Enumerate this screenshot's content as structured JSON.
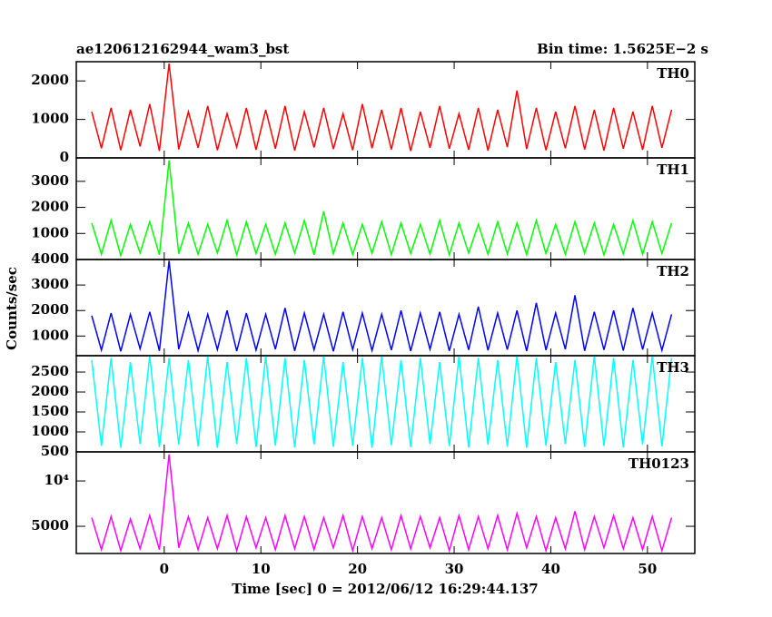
{
  "chart_data": {
    "type": "line",
    "title": "ae120612162944_wam3_bst",
    "subtitle": "Bin time: 1.5625E−2 s",
    "ylabel": "Counts/sec",
    "xlabel": "Time [sec] 0 = 2012/06/12 16:29:44.137",
    "xlim": [
      -9.1,
      54.9
    ],
    "xticks": [
      0,
      10,
      20,
      30,
      40,
      50
    ],
    "x": [
      -7.5,
      -6.5,
      -5.5,
      -4.5,
      -3.5,
      -2.5,
      -1.5,
      -0.5,
      0.5,
      1.5,
      2.5,
      3.5,
      4.5,
      5.5,
      6.5,
      7.5,
      8.5,
      9.5,
      10.5,
      11.5,
      12.5,
      13.5,
      14.5,
      15.5,
      16.5,
      17.5,
      18.5,
      19.5,
      20.5,
      21.5,
      22.5,
      23.5,
      24.5,
      25.5,
      26.5,
      27.5,
      28.5,
      29.5,
      30.5,
      31.5,
      32.5,
      33.5,
      34.5,
      35.5,
      36.5,
      37.5,
      38.5,
      39.5,
      40.5,
      41.5,
      42.5,
      43.5,
      44.5,
      45.5,
      46.5,
      47.5,
      48.5,
      49.5,
      50.5,
      51.5,
      52.5
    ],
    "series": [
      {
        "name": "TH0",
        "color": "#ff0000",
        "ylim": [
          0,
          2500
        ],
        "yticks": [
          0,
          1000,
          2000
        ],
        "log": false,
        "values": [
          1200,
          250,
          1300,
          200,
          1250,
          300,
          1400,
          180,
          2450,
          220,
          1200,
          260,
          1350,
          200,
          1150,
          280,
          1300,
          210,
          1250,
          240,
          1350,
          190,
          1200,
          270,
          1300,
          230,
          1150,
          200,
          1400,
          250,
          1250,
          220,
          1300,
          180,
          1200,
          260,
          1350,
          240,
          1150,
          210,
          1300,
          190,
          1250,
          280,
          1750,
          230,
          1300,
          200,
          1200,
          250,
          1350,
          220,
          1250,
          190,
          1300,
          240,
          1200,
          210,
          1350,
          260,
          1250
        ]
      },
      {
        "name": "TH1",
        "color": "#00ff00",
        "ylim": [
          0,
          3900
        ],
        "yticks": [
          0,
          1000,
          2000,
          3000
        ],
        "log": false,
        "values": [
          1400,
          200,
          1500,
          150,
          1350,
          250,
          1450,
          180,
          3800,
          220,
          1400,
          200,
          1350,
          250,
          1500,
          180,
          1450,
          230,
          1350,
          200,
          1400,
          250,
          1500,
          180,
          1850,
          220,
          1400,
          200,
          1350,
          240,
          1450,
          190,
          1400,
          230,
          1350,
          210,
          1500,
          180,
          1400,
          250,
          1350,
          200,
          1450,
          220,
          1400,
          190,
          1500,
          230,
          1350,
          200,
          1450,
          240,
          1400,
          180,
          1350,
          220,
          1500,
          200,
          1450,
          230,
          1400
        ]
      },
      {
        "name": "TH2",
        "color": "#0000ff",
        "ylim": [
          230,
          4000
        ],
        "yticks": [
          1000,
          2000,
          3000,
          4000
        ],
        "log": false,
        "values": [
          1800,
          450,
          1900,
          400,
          1850,
          500,
          1950,
          420,
          3950,
          480,
          1900,
          430,
          1850,
          470,
          2000,
          410,
          1900,
          450,
          1850,
          480,
          2100,
          420,
          1900,
          460,
          1850,
          400,
          1950,
          470,
          1900,
          430,
          1850,
          450,
          2000,
          410,
          1900,
          480,
          1950,
          420,
          1850,
          460,
          2150,
          440,
          1900,
          470,
          2000,
          410,
          2300,
          450,
          1900,
          480,
          2600,
          420,
          1950,
          460,
          2000,
          430,
          2100,
          470,
          1900,
          440,
          1850
        ]
      },
      {
        "name": "TH3",
        "color": "#00ffff",
        "ylim": [
          500,
          2910
        ],
        "yticks": [
          500,
          1000,
          1500,
          2000,
          2500
        ],
        "log": false,
        "values": [
          2800,
          650,
          2850,
          600,
          2750,
          700,
          2900,
          620,
          2850,
          680,
          2800,
          640,
          2900,
          600,
          2750,
          700,
          2850,
          620,
          2900,
          660,
          2850,
          610,
          2800,
          690,
          2900,
          630,
          2750,
          650,
          2850,
          600,
          2900,
          670,
          2800,
          620,
          2850,
          700,
          2750,
          640,
          2900,
          610,
          2850,
          680,
          2800,
          630,
          2900,
          600,
          2850,
          660,
          2750,
          700,
          2800,
          620,
          2900,
          650,
          2850,
          610,
          2800,
          690,
          2900,
          640,
          2850
        ]
      },
      {
        "name": "TH0123",
        "color": "#ff00ff",
        "ylim": [
          3300,
          15600
        ],
        "yticks": [
          5000,
          {
            "value": 10000,
            "label": "10⁴"
          }
        ],
        "log": true,
        "values": [
          5700,
          3500,
          5800,
          3450,
          5600,
          3550,
          5900,
          3500,
          15000,
          3600,
          5800,
          3500,
          5700,
          3550,
          5900,
          3450,
          5800,
          3600,
          5700,
          3500,
          5900,
          3550,
          5800,
          3500,
          5700,
          3600,
          5900,
          3450,
          5800,
          3550,
          5700,
          3500,
          5900,
          3550,
          5800,
          3600,
          5700,
          3450,
          5900,
          3500,
          5800,
          3550,
          5900,
          3500,
          6100,
          3600,
          5800,
          3450,
          5700,
          3550,
          6300,
          3500,
          5800,
          3600,
          5900,
          3550,
          5700,
          3500,
          5800,
          3450,
          5700
        ]
      }
    ]
  }
}
